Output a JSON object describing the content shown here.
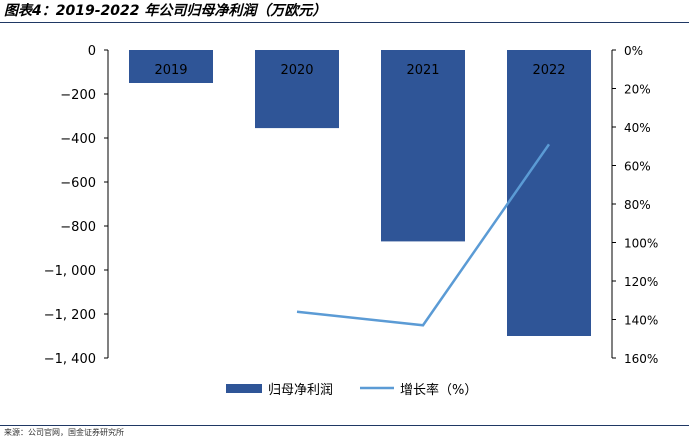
{
  "title": "图表4：2019-2022 年公司归母净利润（万欧元）",
  "source": "来源：公司官网，国金证券研究所",
  "chart_data": {
    "type": "bar",
    "categories": [
      "2019",
      "2020",
      "2021",
      "2022"
    ],
    "series": [
      {
        "name": "归母净利润",
        "type": "bar",
        "axis": "left",
        "color": "#2f5597",
        "values": [
          -150,
          -355,
          -870,
          -1300
        ]
      },
      {
        "name": "增长率（%）",
        "type": "line",
        "axis": "right",
        "color": "#5b9bd5",
        "values": [
          null,
          136,
          143,
          49
        ]
      }
    ],
    "y_left": {
      "min": -1400,
      "max": 0,
      "ticks": [
        0,
        -200,
        -400,
        -600,
        -800,
        -1000,
        -1200,
        -1400
      ],
      "tick_labels": [
        "0",
        "−200",
        "−400",
        "−600",
        "−800",
        "−1, 000",
        "−1, 200",
        "−1, 400"
      ]
    },
    "y_right": {
      "min": 0,
      "max": 160,
      "reversed": true,
      "ticks": [
        0,
        20,
        40,
        60,
        80,
        100,
        120,
        140,
        160
      ],
      "tick_labels": [
        "0%",
        "20%",
        "40%",
        "60%",
        "80%",
        "100%",
        "120%",
        "140%",
        "160%"
      ]
    },
    "legend_position": "bottom",
    "grid": false
  }
}
